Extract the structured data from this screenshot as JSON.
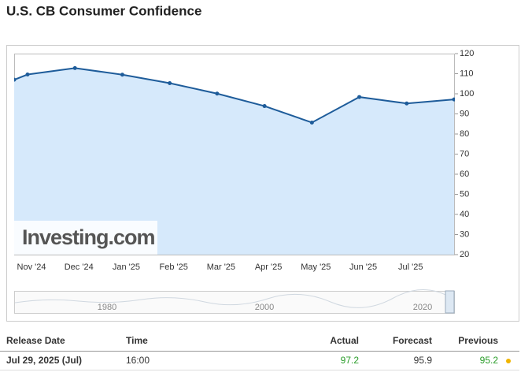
{
  "header": {
    "title": "U.S. CB Consumer Confidence"
  },
  "chart_data": {
    "type": "area",
    "watermark": "Investing.com",
    "categories": [
      null,
      "Nov '24",
      "Dec '24",
      "Jan '25",
      "Feb '25",
      "Mar '25",
      "Apr '25",
      "May '25",
      "Jun '25",
      "Jul '25",
      null
    ],
    "values": [
      107,
      109.6,
      112.8,
      109.5,
      105.3,
      100.1,
      93.9,
      85.7,
      98.4,
      95.2,
      97.2
    ],
    "color": "#1e5c9a",
    "fill": "#d6e9fb",
    "ylim": [
      20,
      120
    ],
    "yticks": [
      20,
      30,
      40,
      50,
      60,
      70,
      80,
      90,
      100,
      110,
      120
    ]
  },
  "navigator": {
    "labels": [
      "1980",
      "2000",
      "2020"
    ]
  },
  "table": {
    "headers": [
      "Release Date",
      "Time",
      "Actual",
      "Forecast",
      "Previous"
    ],
    "rows": [
      [
        "Jul 29, 2025 (Jul)",
        "16:00",
        "97.2",
        "95.9",
        "95.2"
      ]
    ]
  }
}
